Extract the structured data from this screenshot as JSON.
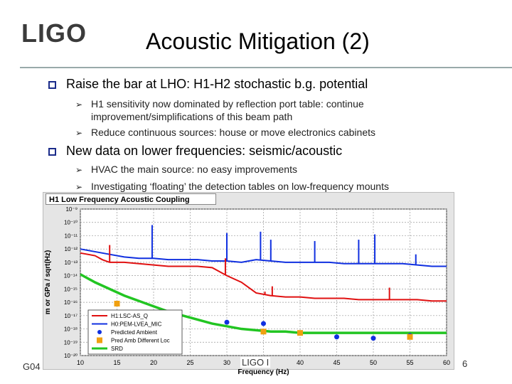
{
  "logo": "LIGO",
  "title": "Acoustic Mitigation (2)",
  "bullets": [
    {
      "text": "Raise the bar at LHO: H1-H2 stochastic b.g. potential",
      "sub": [
        "H1 sensitivity now dominated by reflection port table: continue",
        "improvement/simplifications of this beam path",
        "Reduce continuous sources: house or move electronics cabinets"
      ]
    },
    {
      "text": "New data on lower frequencies: seismic/acoustic",
      "sub": [
        "HVAC the main source: no easy improvements",
        "Investigating ‘floating’ the detection tables on low-frequency mounts"
      ]
    }
  ],
  "footer": {
    "left": "G04",
    "center": "LIGO I",
    "right": "6"
  },
  "chart_data": {
    "type": "line",
    "title": "H1 Low Frequency Acoustic Coupling",
    "xlabel": "Frequency (Hz)",
    "ylabel": "m or GPa / sqrt(Hz)",
    "xlim": [
      10,
      60
    ],
    "xticks": [
      "10",
      "15",
      "20",
      "25",
      "30",
      "35",
      "40",
      "45",
      "50",
      "55",
      "60"
    ],
    "yticks": [
      "10⁻⁹",
      "10⁻¹⁰",
      "10⁻¹¹",
      "10⁻¹²",
      "10⁻¹³",
      "10⁻¹⁴",
      "10⁻¹⁵",
      "10⁻¹⁶",
      "10⁻¹⁷",
      "10⁻¹⁸",
      "10⁻¹⁹",
      "10⁻²⁰"
    ],
    "ylim_exp": [
      -20,
      -9
    ],
    "log_y": true,
    "grid": true,
    "legend_position": "bottom-left",
    "colors": {
      "h1": "#e01010",
      "mic": "#1030e0",
      "pred": "#1030e0",
      "predDiff": "#f0a010",
      "srd": "#22c522"
    },
    "series": [
      {
        "name": "H1:LSC-AS_Q",
        "key": "h1",
        "x": [
          10,
          12,
          13,
          14,
          16,
          18,
          20,
          22,
          24,
          26,
          28,
          30,
          32,
          34,
          36,
          38,
          40,
          42,
          44,
          46,
          48,
          50,
          52,
          54,
          56,
          58,
          60
        ],
        "y": [
          -12.3,
          -12.5,
          -12.8,
          -13.0,
          -13.0,
          -13.1,
          -13.2,
          -13.3,
          -13.3,
          -13.3,
          -13.4,
          -14.0,
          -14.5,
          -15.3,
          -15.5,
          -15.6,
          -15.6,
          -15.7,
          -15.7,
          -15.7,
          -15.8,
          -15.8,
          -15.8,
          -15.8,
          -15.8,
          -15.9,
          -15.9
        ]
      },
      {
        "name": "H0:PEM-LVEA_MIC",
        "key": "mic",
        "x": [
          10,
          12,
          14,
          16,
          18,
          20,
          22,
          24,
          26,
          28,
          30,
          32,
          34,
          36,
          38,
          40,
          42,
          44,
          46,
          48,
          50,
          52,
          54,
          56,
          58,
          60
        ],
        "y": [
          -12.0,
          -12.2,
          -12.4,
          -12.6,
          -12.7,
          -12.7,
          -12.8,
          -12.8,
          -12.8,
          -12.9,
          -12.9,
          -13.0,
          -12.8,
          -12.9,
          -13.0,
          -13.0,
          -13.0,
          -13.0,
          -13.1,
          -13.1,
          -13.1,
          -13.1,
          -13.1,
          -13.2,
          -13.3,
          -13.3
        ]
      },
      {
        "name": "Predicted Ambient",
        "key": "pred",
        "x": [
          30,
          35,
          45,
          50,
          55
        ],
        "y": [
          -17.5,
          -17.6,
          -18.6,
          -18.7,
          -18.5
        ]
      },
      {
        "name": "Pred Amb Different Loc",
        "key": "predDiff",
        "x": [
          15,
          35,
          40,
          55
        ],
        "y": [
          -16.1,
          -18.2,
          -18.3,
          -18.6
        ]
      },
      {
        "name": "SRD",
        "key": "srd",
        "x": [
          10,
          12,
          14,
          16,
          18,
          20,
          22,
          24,
          26,
          28,
          30,
          32,
          34,
          36,
          38,
          40,
          45,
          50,
          55,
          60
        ],
        "y": [
          -13.9,
          -14.5,
          -15.0,
          -15.5,
          -15.9,
          -16.3,
          -16.7,
          -17.0,
          -17.3,
          -17.6,
          -17.8,
          -18.0,
          -18.1,
          -18.2,
          -18.2,
          -18.3,
          -18.3,
          -18.3,
          -18.3,
          -18.3
        ]
      }
    ],
    "spikes": [
      {
        "key": "mic",
        "x": 19.8,
        "top": -10.2
      },
      {
        "key": "mic",
        "x": 30,
        "top": -10.8
      },
      {
        "key": "mic",
        "x": 34.6,
        "top": -10.7
      },
      {
        "key": "mic",
        "x": 36,
        "top": -11.3
      },
      {
        "key": "mic",
        "x": 42,
        "top": -11.4
      },
      {
        "key": "mic",
        "x": 48,
        "top": -11.3
      },
      {
        "key": "mic",
        "x": 50.2,
        "top": -10.9
      },
      {
        "key": "mic",
        "x": 55.8,
        "top": -12.4
      },
      {
        "key": "h1",
        "x": 14,
        "top": -11.7
      },
      {
        "key": "h1",
        "x": 29.8,
        "top": -12.7
      },
      {
        "key": "h1",
        "x": 35.2,
        "top": -15.2
      },
      {
        "key": "h1",
        "x": 36.2,
        "top": -14.8
      },
      {
        "key": "h1",
        "x": 52.2,
        "top": -14.9
      }
    ]
  }
}
